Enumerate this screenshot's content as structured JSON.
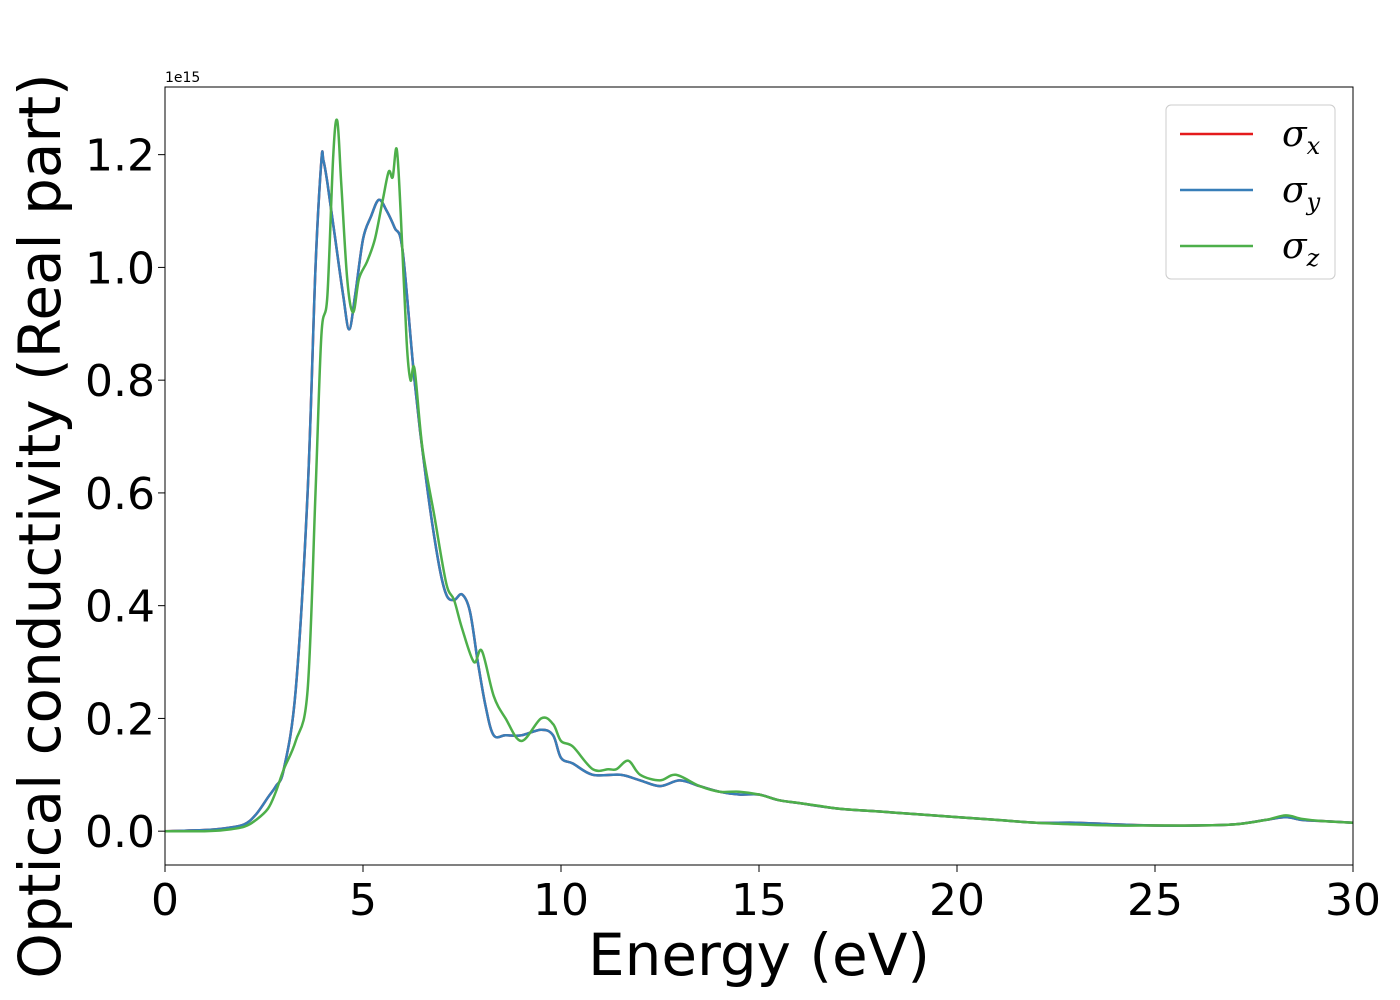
{
  "chart_data": {
    "type": "line",
    "xlabel": "Energy (eV)",
    "ylabel": "Optical conductivity (Real part)",
    "y_offset_label": "1e15",
    "xlim": [
      0,
      30
    ],
    "ylim": [
      -0.06,
      1.32
    ],
    "x_ticks": [
      0,
      5,
      10,
      15,
      20,
      25,
      30
    ],
    "y_ticks": [
      0.0,
      0.2,
      0.4,
      0.6,
      0.8,
      1.0,
      1.2
    ],
    "x_tick_labels": [
      "0",
      "5",
      "10",
      "15",
      "20",
      "25",
      "30"
    ],
    "y_tick_labels": [
      "0.0",
      "0.2",
      "0.4",
      "0.6",
      "0.8",
      "1.0",
      "1.2"
    ],
    "grid": false,
    "legend_position": "top-right",
    "series": [
      {
        "name": "σx",
        "symbol": "σ",
        "subscript": "x",
        "color": "#e41a1c",
        "x": [
          0,
          1,
          1.5,
          2.0,
          2.3,
          2.6,
          2.8,
          3.0,
          3.3,
          3.6,
          3.8,
          3.95,
          4.0,
          4.1,
          4.3,
          4.5,
          4.65,
          4.8,
          5.0,
          5.2,
          5.4,
          5.6,
          5.8,
          6.0,
          6.3,
          6.6,
          6.9,
          7.1,
          7.3,
          7.5,
          7.7,
          7.9,
          8.1,
          8.3,
          8.6,
          9.0,
          9.5,
          9.8,
          10.0,
          10.3,
          10.8,
          11.5,
          12.0,
          12.5,
          13.0,
          13.5,
          14.0,
          14.5,
          15.0,
          15.5,
          16.0,
          17.0,
          18.0,
          19.0,
          20.0,
          21.0,
          22.0,
          23.0,
          24.0,
          25.0,
          26.0,
          27.0,
          27.8,
          28.3,
          28.7,
          29.2,
          30.0
        ],
        "values": [
          0.0,
          0.002,
          0.005,
          0.012,
          0.03,
          0.06,
          0.08,
          0.11,
          0.25,
          0.6,
          1.0,
          1.19,
          1.19,
          1.15,
          1.05,
          0.95,
          0.89,
          0.95,
          1.05,
          1.09,
          1.12,
          1.1,
          1.07,
          1.03,
          0.8,
          0.62,
          0.48,
          0.42,
          0.41,
          0.42,
          0.39,
          0.3,
          0.22,
          0.17,
          0.17,
          0.17,
          0.18,
          0.17,
          0.13,
          0.12,
          0.1,
          0.1,
          0.09,
          0.08,
          0.09,
          0.08,
          0.07,
          0.065,
          0.065,
          0.055,
          0.05,
          0.04,
          0.035,
          0.03,
          0.025,
          0.02,
          0.015,
          0.015,
          0.012,
          0.01,
          0.01,
          0.012,
          0.02,
          0.025,
          0.02,
          0.018,
          0.015
        ]
      },
      {
        "name": "σy",
        "symbol": "σ",
        "subscript": "y",
        "color": "#377eb8",
        "x": [
          0,
          1,
          1.5,
          2.0,
          2.3,
          2.6,
          2.8,
          3.0,
          3.3,
          3.6,
          3.8,
          3.95,
          4.0,
          4.1,
          4.3,
          4.5,
          4.65,
          4.8,
          5.0,
          5.2,
          5.4,
          5.6,
          5.8,
          6.0,
          6.3,
          6.6,
          6.9,
          7.1,
          7.3,
          7.5,
          7.7,
          7.9,
          8.1,
          8.3,
          8.6,
          9.0,
          9.5,
          9.8,
          10.0,
          10.3,
          10.8,
          11.5,
          12.0,
          12.5,
          13.0,
          13.5,
          14.0,
          14.5,
          15.0,
          15.5,
          16.0,
          17.0,
          18.0,
          19.0,
          20.0,
          21.0,
          22.0,
          23.0,
          24.0,
          25.0,
          26.0,
          27.0,
          27.8,
          28.3,
          28.7,
          29.2,
          30.0
        ],
        "values": [
          0.0,
          0.002,
          0.005,
          0.012,
          0.03,
          0.06,
          0.08,
          0.11,
          0.25,
          0.6,
          1.0,
          1.19,
          1.19,
          1.15,
          1.05,
          0.95,
          0.89,
          0.95,
          1.05,
          1.09,
          1.12,
          1.1,
          1.07,
          1.03,
          0.8,
          0.62,
          0.48,
          0.42,
          0.41,
          0.42,
          0.39,
          0.3,
          0.22,
          0.17,
          0.17,
          0.17,
          0.18,
          0.17,
          0.13,
          0.12,
          0.1,
          0.1,
          0.09,
          0.08,
          0.09,
          0.08,
          0.07,
          0.065,
          0.065,
          0.055,
          0.05,
          0.04,
          0.035,
          0.03,
          0.025,
          0.02,
          0.015,
          0.015,
          0.012,
          0.01,
          0.01,
          0.012,
          0.02,
          0.025,
          0.02,
          0.018,
          0.015
        ]
      },
      {
        "name": "σz",
        "symbol": "σ",
        "subscript": "z",
        "color": "#4daf4a",
        "x": [
          0,
          1,
          1.5,
          2.0,
          2.3,
          2.6,
          2.8,
          3.0,
          3.3,
          3.6,
          3.8,
          3.95,
          4.1,
          4.25,
          4.35,
          4.45,
          4.6,
          4.75,
          4.9,
          5.1,
          5.3,
          5.5,
          5.65,
          5.75,
          5.85,
          5.95,
          6.1,
          6.2,
          6.3,
          6.5,
          6.8,
          7.1,
          7.3,
          7.5,
          7.8,
          8.0,
          8.3,
          8.6,
          9.0,
          9.5,
          9.8,
          10.0,
          10.3,
          10.8,
          11.2,
          11.4,
          11.7,
          12.0,
          12.5,
          12.9,
          13.5,
          14.0,
          14.5,
          15.0,
          15.5,
          16.0,
          16.5,
          17.0,
          18.0,
          19.0,
          20.0,
          21.0,
          22.0,
          23.0,
          24.0,
          25.0,
          26.0,
          27.0,
          27.8,
          28.3,
          28.7,
          29.2,
          30.0
        ],
        "values": [
          0.0,
          0.0,
          0.002,
          0.008,
          0.02,
          0.04,
          0.07,
          0.11,
          0.16,
          0.25,
          0.6,
          0.88,
          0.95,
          1.2,
          1.26,
          1.15,
          0.98,
          0.92,
          0.98,
          1.01,
          1.05,
          1.12,
          1.17,
          1.16,
          1.21,
          1.1,
          0.87,
          0.8,
          0.82,
          0.68,
          0.56,
          0.44,
          0.41,
          0.36,
          0.3,
          0.32,
          0.24,
          0.2,
          0.16,
          0.2,
          0.19,
          0.16,
          0.15,
          0.11,
          0.11,
          0.11,
          0.125,
          0.1,
          0.09,
          0.1,
          0.08,
          0.07,
          0.07,
          0.065,
          0.055,
          0.05,
          0.045,
          0.04,
          0.035,
          0.03,
          0.025,
          0.02,
          0.015,
          0.012,
          0.01,
          0.01,
          0.01,
          0.012,
          0.02,
          0.028,
          0.022,
          0.018,
          0.015
        ]
      }
    ]
  }
}
